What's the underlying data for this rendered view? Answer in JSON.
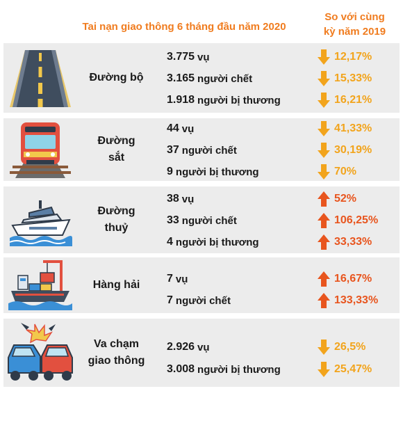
{
  "header": {
    "title": "Tai nạn giao thông 6 tháng đầu năm 2020",
    "compare_line1": "So với cùng",
    "compare_line2": "kỳ năm 2019"
  },
  "colors": {
    "accent": "#f07c1f",
    "decrease": "#f2a41c",
    "increase": "#e8551e",
    "panel": "#ececec"
  },
  "sections": [
    {
      "icon": "road-icon",
      "label_line1": "Đường bộ",
      "label_line2": "",
      "rows": [
        {
          "num": "3.775",
          "unit": "vụ",
          "direction": "down",
          "pct": "12,17%"
        },
        {
          "num": "3.165",
          "unit": "người chết",
          "direction": "down",
          "pct": "15,33%"
        },
        {
          "num": "1.918",
          "unit": "người bị thương",
          "direction": "down",
          "pct": "16,21%"
        }
      ]
    },
    {
      "icon": "train-icon",
      "label_line1": "Đường",
      "label_line2": "sắt",
      "rows": [
        {
          "num": "44",
          "unit": "vụ",
          "direction": "down",
          "pct": "41,33%"
        },
        {
          "num": "37",
          "unit": "người chết",
          "direction": "down",
          "pct": "30,19%"
        },
        {
          "num": "9",
          "unit": "người bị thương",
          "direction": "down",
          "pct": "70%"
        }
      ]
    },
    {
      "icon": "boat-icon",
      "label_line1": "Đường",
      "label_line2": "thuỷ",
      "rows": [
        {
          "num": "38",
          "unit": "vụ",
          "direction": "up",
          "pct": "52%"
        },
        {
          "num": "33",
          "unit": "người chết",
          "direction": "up",
          "pct": "106,25%"
        },
        {
          "num": "4",
          "unit": "người bị thương",
          "direction": "up",
          "pct": "33,33%"
        }
      ]
    },
    {
      "icon": "cargo-ship-icon",
      "label_line1": "Hàng hải",
      "label_line2": "",
      "rows": [
        {
          "num": "7",
          "unit": "vụ",
          "direction": "up",
          "pct": "16,67%"
        },
        {
          "num": "7",
          "unit": "người chết",
          "direction": "up",
          "pct": "133,33%"
        }
      ]
    },
    {
      "icon": "car-crash-icon",
      "label_line1": "Va chạm",
      "label_line2": "giao thông",
      "rows": [
        {
          "num": "2.926",
          "unit": "vụ",
          "direction": "down",
          "pct": "26,5%"
        },
        {
          "num": "3.008",
          "unit": "người bị thương",
          "direction": "down",
          "pct": "25,47%"
        }
      ]
    }
  ]
}
